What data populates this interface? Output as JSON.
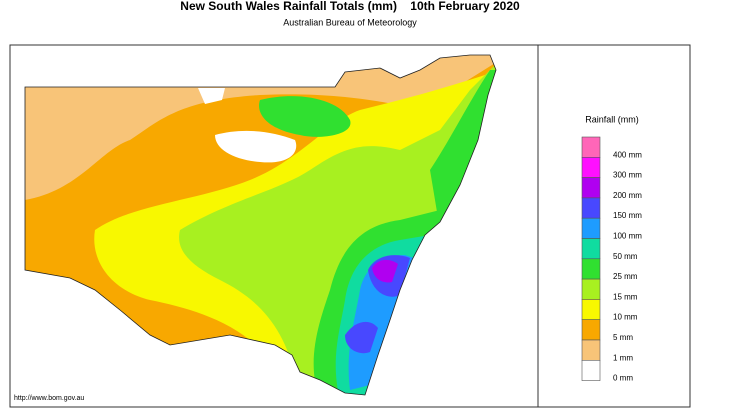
{
  "header": {
    "title": "New South Wales Rainfall Totals (mm)    10th February 2020",
    "subtitle": "Australian Bureau of Meteorology"
  },
  "legend": {
    "title": "Rainfall (mm)",
    "items": [
      {
        "label": "400 mm",
        "color": "#ff66b8"
      },
      {
        "label": "300 mm",
        "color": "#ff10ff"
      },
      {
        "label": "200 mm",
        "color": "#b000f0"
      },
      {
        "label": "150 mm",
        "color": "#4848ff"
      },
      {
        "label": "100 mm",
        "color": "#1e9cff"
      },
      {
        "label": "50 mm",
        "color": "#10dca0"
      },
      {
        "label": "25 mm",
        "color": "#30e030"
      },
      {
        "label": "15 mm",
        "color": "#a8f020"
      },
      {
        "label": "10 mm",
        "color": "#f8f800"
      },
      {
        "label": "5 mm",
        "color": "#f8a800"
      },
      {
        "label": "1 mm",
        "color": "#f8c478"
      },
      {
        "label": "0 mm",
        "color": "#ffffff"
      }
    ]
  },
  "footer": {
    "url": "http://www.bom.gov.au"
  }
}
